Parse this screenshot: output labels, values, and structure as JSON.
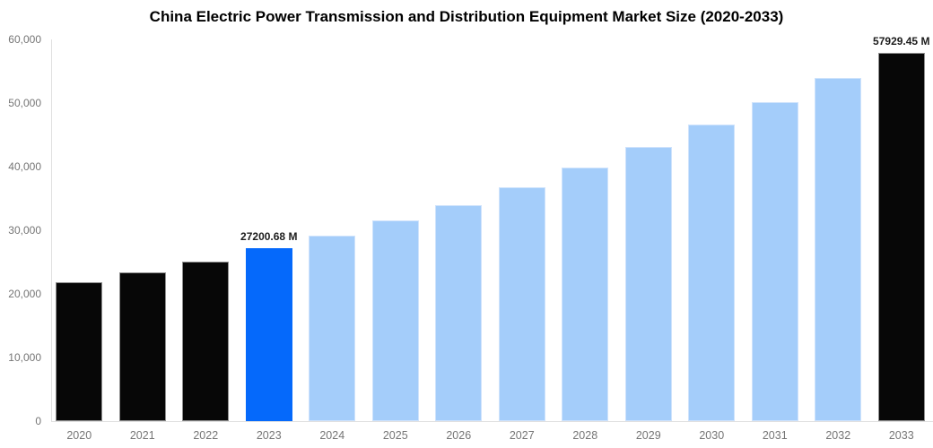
{
  "chart_data": {
    "type": "bar",
    "title": "China Electric Power Transmission and Distribution Equipment Market Size (2020-2033)",
    "xlabel": "",
    "ylabel": "",
    "unit": "M",
    "categories": [
      "2020",
      "2021",
      "2022",
      "2023",
      "2024",
      "2025",
      "2026",
      "2027",
      "2028",
      "2029",
      "2030",
      "2031",
      "2032",
      "2033"
    ],
    "values": [
      21800,
      23400,
      25100,
      27200.68,
      29200,
      31500,
      33900,
      36800,
      39800,
      43100,
      46600,
      50200,
      54000,
      57929.45
    ],
    "bar_color_keys": [
      "black",
      "black",
      "black",
      "highlight",
      "light",
      "light",
      "light",
      "light",
      "light",
      "light",
      "light",
      "light",
      "light",
      "black"
    ],
    "colors": {
      "black": "#070707",
      "highlight": "#0569fb",
      "light": "#a4cdfa"
    },
    "border_colors": {
      "black": "#8f8f8f",
      "highlight": "#0569fb",
      "light": "#cfe3fc"
    },
    "data_labels": [
      {
        "index": 3,
        "text": "27200.68 M"
      },
      {
        "index": 13,
        "text": "57929.45 M"
      }
    ],
    "y_ticks": [
      {
        "value": 0,
        "label": "0"
      },
      {
        "value": 10000,
        "label": "10,000"
      },
      {
        "value": 20000,
        "label": "20,000"
      },
      {
        "value": 30000,
        "label": "30,000"
      },
      {
        "value": 40000,
        "label": "40,000"
      },
      {
        "value": 50000,
        "label": "50,000"
      },
      {
        "value": 60000,
        "label": "60,000"
      }
    ],
    "ylim": [
      0,
      60000
    ],
    "grid": false,
    "legend": "none",
    "style": {
      "axis_line_color": "#e0e0e0",
      "tick_label_color": "#757575",
      "title_color": "#000000",
      "data_label_color": "#1c1c1c",
      "background": "#ffffff"
    }
  }
}
